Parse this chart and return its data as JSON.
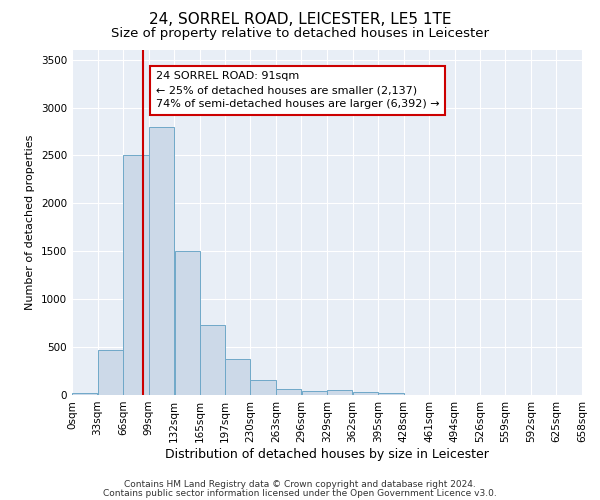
{
  "title": "24, SORREL ROAD, LEICESTER, LE5 1TE",
  "subtitle": "Size of property relative to detached houses in Leicester",
  "xlabel": "Distribution of detached houses by size in Leicester",
  "ylabel": "Number of detached properties",
  "bar_color": "#ccd9e8",
  "bar_edge_color": "#6fa8c8",
  "bin_labels": [
    "0sqm",
    "33sqm",
    "66sqm",
    "99sqm",
    "132sqm",
    "165sqm",
    "197sqm",
    "230sqm",
    "263sqm",
    "296sqm",
    "329sqm",
    "362sqm",
    "395sqm",
    "428sqm",
    "461sqm",
    "494sqm",
    "526sqm",
    "559sqm",
    "592sqm",
    "625sqm",
    "658sqm"
  ],
  "bar_heights": [
    20,
    470,
    2500,
    2800,
    1500,
    730,
    380,
    155,
    65,
    45,
    50,
    35,
    25,
    0,
    0,
    0,
    0,
    0,
    0,
    0
  ],
  "bin_width": 33,
  "bin_starts": [
    0,
    33,
    66,
    99,
    132,
    165,
    197,
    230,
    263,
    296,
    329,
    362,
    395,
    428,
    461,
    494,
    526,
    559,
    592,
    625
  ],
  "vline_x": 91,
  "vline_color": "#cc0000",
  "annotation_text": "24 SORREL ROAD: 91sqm\n← 25% of detached houses are smaller (2,137)\n74% of semi-detached houses are larger (6,392) →",
  "annotation_box_color": "#ffffff",
  "annotation_box_edge_color": "#cc0000",
  "ylim": [
    0,
    3600
  ],
  "yticks": [
    0,
    500,
    1000,
    1500,
    2000,
    2500,
    3000,
    3500
  ],
  "background_color": "#e8eef6",
  "footer_line1": "Contains HM Land Registry data © Crown copyright and database right 2024.",
  "footer_line2": "Contains public sector information licensed under the Open Government Licence v3.0.",
  "title_fontsize": 11,
  "subtitle_fontsize": 9.5,
  "annotation_fontsize": 8,
  "ylabel_fontsize": 8,
  "xlabel_fontsize": 9,
  "tick_fontsize": 7.5,
  "footer_fontsize": 6.5
}
